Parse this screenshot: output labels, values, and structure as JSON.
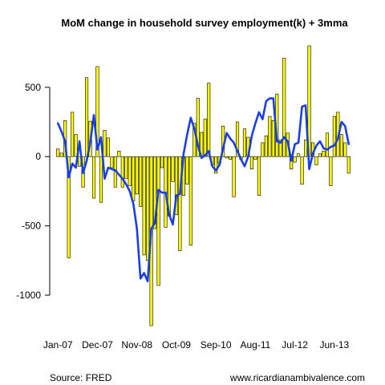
{
  "chart_data": {
    "type": "bar",
    "title": "MoM change in household survey employment(k) + 3mma",
    "xlabel": "",
    "ylabel": "",
    "x_tick_labels": [
      "Jan-07",
      "Dec-07",
      "Nov-08",
      "Oct-09",
      "Sep-10",
      "Aug-11",
      "Jul-12",
      "Jun-13"
    ],
    "y_ticks": [
      500,
      0,
      -500,
      -1000
    ],
    "ylim": [
      -1220,
      800
    ],
    "grid": false,
    "series": [
      {
        "type": "bar",
        "color": "#FFFF00",
        "values": [
          55,
          25,
          260,
          -730,
          320,
          160,
          -70,
          -220,
          570,
          255,
          -300,
          650,
          -330,
          190,
          135,
          -80,
          -220,
          40,
          -220,
          -160,
          -210,
          -320,
          -270,
          -360,
          -710,
          -750,
          -1220,
          -520,
          -930,
          -80,
          -510,
          -430,
          -180,
          -420,
          -680,
          -280,
          -200,
          -640,
          240,
          420,
          175,
          270,
          530,
          -60,
          -120,
          -50,
          220,
          -10,
          -20,
          -290,
          250,
          -20,
          200,
          140,
          -90,
          -20,
          -280,
          100,
          150,
          290,
          260,
          450,
          120,
          710,
          170,
          -90,
          -40,
          20,
          -200,
          120,
          800,
          100,
          -60,
          20,
          40,
          170,
          -210,
          290,
          320,
          160,
          100,
          -120
        ]
      },
      {
        "type": "line",
        "name": "3mma",
        "color": "#1a3ee8",
        "values": [
          240,
          180,
          110,
          -150,
          -50,
          -80,
          110,
          -120,
          -30,
          100,
          300,
          50,
          140,
          -160,
          -80,
          -90,
          -100,
          -130,
          -160,
          -200,
          -250,
          -340,
          -520,
          -880,
          -840,
          -900,
          -520,
          -480,
          -240,
          -260,
          -260,
          -420,
          -490,
          -280,
          -270,
          20,
          160,
          280,
          200,
          80,
          -10,
          10,
          40,
          -70,
          -100,
          -60,
          60,
          170,
          130,
          100,
          40,
          -20,
          -70,
          0,
          150,
          240,
          320,
          270,
          400,
          420,
          420,
          110,
          100,
          140,
          110,
          -30,
          90,
          100,
          360,
          370,
          -90,
          20,
          80,
          110,
          60,
          50,
          70,
          80,
          130,
          250,
          220,
          90
        ]
      }
    ],
    "footer_left": "Source: FRED",
    "footer_right": "www.ricardianambivalence.com"
  }
}
